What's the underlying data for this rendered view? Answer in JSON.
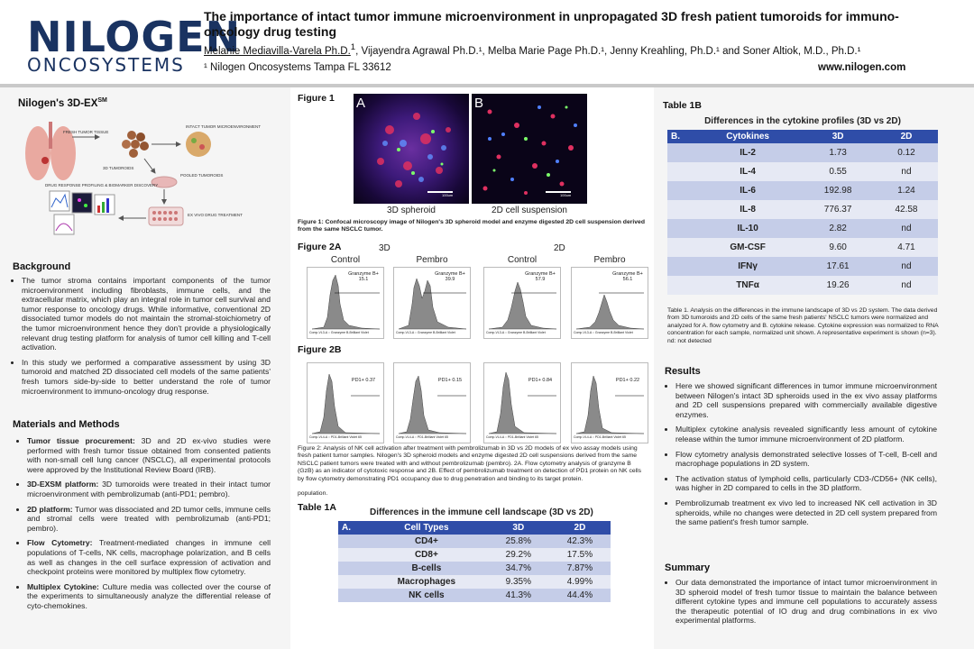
{
  "header": {
    "logo_line1": "NILOGEN",
    "logo_line2": "ONCOSYSTEMS",
    "title": "The importance of intact tumor immune microenvironment in unpropagated 3D fresh patient tumoroids for immuno-oncology drug testing",
    "authors_first": "Melanie Mediavilla-Varela Ph.D.",
    "authors_rest": "Vijayendra Agrawal Ph.D.¹, Melba Marie Page Ph.D.¹,  Jenny Kreahling, Ph.D.¹ and Soner Altiok, M.D., Ph.D.¹",
    "affiliation": "¹ Nilogen Oncosystems Tampa FL 33612",
    "website": "www.nilogen.com"
  },
  "left": {
    "platform_title": "Nilogen's 3D-EX",
    "platform_sup": "SM",
    "diagram_labels": [
      "FRESH TUMOR TISSUE",
      "3D TUMOROIDS",
      "INTACT TUMOR MICROENVIRONMENT",
      "POOLED TUMOROIDS",
      "DRUG RESPONSE PROFILING & BIOMARKER DISCOVERY",
      "EX VIVO DRUG TREATMENT"
    ],
    "background_title": "Background",
    "background_items": [
      "The tumor stroma contains important components of the tumor microenvironment including fibroblasts, immune cells, and the extracellular matrix, which play an integral role in tumor cell survival and tumor response to oncology drugs. While informative, conventional 2D dissociated tumor models do not maintain the stromal-stoichiometry of the tumor microenvironment hence they don't provide a physiologically relevant drug testing platform for analysis of tumor cell killing and T-cell activation.",
      "In this study we performed a comparative assessment by using 3D tumoroid and matched 2D dissociated cell models of the same patients' fresh tumors side-by-side to better understand the role of tumor microenvironment to immuno-oncology drug response."
    ],
    "methods_title": "Materials and Methods",
    "methods_items": [
      {
        "label": "Tumor tissue procurement:",
        "text": " 3D and 2D ex-vivo studies were performed with fresh tumor tissue obtained from consented patients with non-small cell lung cancer (NSCLC), all experimental protocols were approved by the Institutional Review Board (IRB)."
      },
      {
        "label": "3D-EXSM platform:",
        "text": " 3D tumoroids were treated in their intact tumor microenvironment with pembrolizumab (anti-PD1; pembro)."
      },
      {
        "label": "2D platform:",
        "text": " Tumor was dissociated and 2D tumor cells, immune cells and stromal cells were treated with pembrolizumab (anti-PD1; pembro)."
      },
      {
        "label": "Flow Cytometry:",
        "text": " Treatment-mediated changes in immune cell populations of T-cells, NK cells, macrophage polarization, and B cells as well as changes in the cell surface expression of activation and checkpoint proteins were monitored by multiplex flow cytometry."
      },
      {
        "label": "Multiplex Cytokine:",
        "text": " Culture media was collected over the course of the experiments to simultaneously analyze the differential release of cyto-chemokines."
      }
    ]
  },
  "middle": {
    "fig1_label": "Figure 1",
    "fig1_a": "A",
    "fig1_b": "B",
    "fig1_a_caption": "3D spheroid",
    "fig1_b_caption": "2D cell suspension",
    "scale_bar": "100um",
    "fig1_caption": "Figure 1: Confocal microscopy image of Nilogen's 3D spheroid model and enzyme digested 2D cell suspension derived from the same NSCLC tumor.",
    "fig2a_label": "Figure 2A",
    "group_3d": "3D",
    "group_2d": "2D",
    "col_labels": [
      "Control",
      "Pembro",
      "Control",
      "Pembro"
    ],
    "fig2a_gates": [
      "Granzyme B+ 15.1",
      "Granzyme B+ 39.9",
      "Granzyme B+ 57.9",
      "Granzyme B+ 56.1"
    ],
    "fig2a_axis": "Comp-VL3-A :: Granzyme B-Brilliant Violet",
    "fig2b_label": "Figure 2B",
    "fig2b_gates": [
      "PD1+ 0.37",
      "PD1+ 0.15",
      "PD1+ 0.84",
      "PD1+ 0.22"
    ],
    "fig2b_axis": "Comp-VL4-A :: PD1-Brilliant Violet 65",
    "fig2_caption": "Figure 2: Analysis of NK cell activation after treatment with pembrolizumab in 3D vs 2D models of ex vivo assay models using fresh patient tumor samples. Nilogen's 3D spheroid models and enzyme digested 2D cell suspensions derived from the same NSCLC patient tumors were treated with and without pembrolizumab (pembro). 2A. Flow cytometry analysis of granzyme B (GzB) as an indicator of cytotoxic response and 2B. Effect of pembrolizumab treatment on detection of PD1 protein on NK cells by flow cytometry demonstrating PD1 occupancy due to drug penetration and binding to its target protein.",
    "population": "population.",
    "table1a_label": "Table 1A",
    "table1a_title": "Differences in the immune cell landscape (3D vs 2D)",
    "table1a_header": [
      "A.",
      "Cell Types",
      "3D",
      "2D"
    ],
    "table1a_rows": [
      [
        "CD4+",
        "25.8%",
        "42.3%"
      ],
      [
        "CD8+",
        "29.2%",
        "17.5%"
      ],
      [
        "B-cells",
        "34.7%",
        "7.87%"
      ],
      [
        "Macrophages",
        "9.35%",
        "4.99%"
      ],
      [
        "NK cells",
        "41.3%",
        "44.4%"
      ]
    ]
  },
  "right": {
    "table1b_label": "Table 1B",
    "table1b_title": "Differences in the cytokine profiles (3D vs 2D)",
    "table1b_header": [
      "B.",
      "Cytokines",
      "3D",
      "2D"
    ],
    "table1b_rows": [
      [
        "IL-2",
        "1.73",
        "0.12"
      ],
      [
        "IL-4",
        "0.55",
        "nd"
      ],
      [
        "IL-6",
        "192.98",
        "1.24"
      ],
      [
        "IL-8",
        "776.37",
        "42.58"
      ],
      [
        "IL-10",
        "2.82",
        "nd"
      ],
      [
        "GM-CSF",
        "9.60",
        "4.71"
      ],
      [
        "IFNγ",
        "17.61",
        "nd"
      ],
      [
        "TNFα",
        "19.26",
        "nd"
      ]
    ],
    "table1_caption": "Table 1. Analysis on the differences in the immune landscape of 3D vs 2D system. The data derived from 3D tumoroids and 2D cells of the same fresh patients' NSCLC tumors were normalized and analyzed for A. flow cytometry and B. cytokine release. Cytokine expression was normalized to RNA concentration for each sample, normalized unit shown. A representative experiment is shown (n=3). nd: not detected",
    "results_title": "Results",
    "results_items": [
      "Here we showed significant differences in tumor immune microenvironment between Nilogen's intact 3D spheroids used in the ex vivo assay platforms and 2D cell suspensions prepared with commercially available digestive enzymes.",
      "Multiplex cytokine analysis revealed significantly less amount of cytokine release within the tumor immune microenvironment of 2D platform.",
      "Flow cytometry analysis demonstrated selective losses of T-cell, B-cell and macrophage populations in 2D system.",
      "The activation status of lymphoid cells, particularly CD3-/CD56+ (NK cells), was higher in 2D compared to cells in the 3D platform.",
      "Pembrolizumab treatment ex vivo led to increased NK cell activation in 3D spheroids, while no changes were detected in 2D cell system prepared from the same patient's fresh  tumor sample."
    ],
    "summary_title": "Summary",
    "summary_items": [
      "Our data demonstrated the importance of intact tumor microenvironment in 3D spheroid model of fresh tumor tissue to maintain the balance between different cytokine types and immune cell populations to accurately assess the therapeutic potential of IO drug and drug combinations in ex vivo experimental platforms."
    ]
  },
  "colors": {
    "brand": "#1a3361",
    "table_header": "#2f4da8",
    "row_odd": "#c5cde8",
    "row_even": "#e6e9f4",
    "column_bg": "#f5f5f5",
    "histogram": "#8a8a8a"
  }
}
